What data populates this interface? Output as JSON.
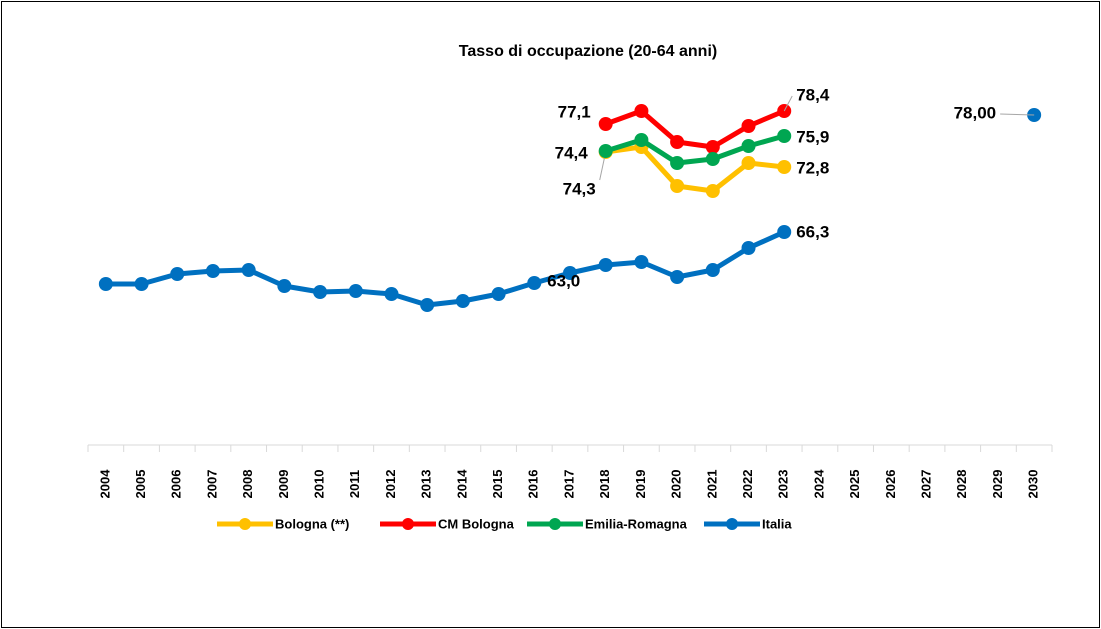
{
  "chart_data": {
    "type": "line",
    "title": "Tasso di occupazione (20-64 anni)",
    "categories": [
      "2004",
      "2005",
      "2006",
      "2007",
      "2008",
      "2009",
      "2010",
      "2011",
      "2012",
      "2013",
      "2014",
      "2015",
      "2016",
      "2017",
      "2018",
      "2019",
      "2020",
      "2021",
      "2022",
      "2023",
      "2024",
      "2025",
      "2026",
      "2027",
      "2028",
      "2029",
      "2030"
    ],
    "ylim": [
      45,
      80
    ],
    "legend": "bottom",
    "series": [
      {
        "name": "Bologna (**)",
        "color": "#FFC000",
        "values": [
          null,
          null,
          null,
          null,
          null,
          null,
          null,
          null,
          null,
          null,
          null,
          null,
          null,
          null,
          74.3,
          74.8,
          70.9,
          70.4,
          73.2,
          72.8,
          null,
          null,
          null,
          null,
          null,
          null,
          null
        ],
        "value_labels": [
          null,
          null,
          null,
          null,
          null,
          null,
          null,
          null,
          null,
          null,
          null,
          null,
          null,
          null,
          "74,3",
          null,
          null,
          null,
          null,
          "72,8",
          null,
          null,
          null,
          null,
          null,
          null,
          null
        ]
      },
      {
        "name": "CM Bologna",
        "color": "#FF0000",
        "values": [
          null,
          null,
          null,
          null,
          null,
          null,
          null,
          null,
          null,
          null,
          null,
          null,
          null,
          null,
          77.1,
          78.4,
          75.3,
          74.8,
          76.9,
          78.4,
          null,
          null,
          null,
          null,
          null,
          null,
          null
        ],
        "value_labels": [
          null,
          null,
          null,
          null,
          null,
          null,
          null,
          null,
          null,
          null,
          null,
          null,
          null,
          null,
          "77,1",
          null,
          null,
          null,
          null,
          "78,4",
          null,
          null,
          null,
          null,
          null,
          null,
          null
        ]
      },
      {
        "name": "Emilia-Romagna",
        "color": "#00A651",
        "values": [
          null,
          null,
          null,
          null,
          null,
          null,
          null,
          null,
          null,
          null,
          null,
          null,
          null,
          null,
          74.4,
          75.5,
          73.2,
          73.6,
          74.9,
          75.9,
          null,
          null,
          null,
          null,
          null,
          null,
          null
        ],
        "value_labels": [
          null,
          null,
          null,
          null,
          null,
          null,
          null,
          null,
          null,
          null,
          null,
          null,
          null,
          null,
          "74,4",
          null,
          null,
          null,
          null,
          "75,9",
          null,
          null,
          null,
          null,
          null,
          null,
          null
        ]
      },
      {
        "name": "Italia",
        "color": "#0070C0",
        "values": [
          61.1,
          61.1,
          62.1,
          62.4,
          62.5,
          60.9,
          60.3,
          60.4,
          60.1,
          59.0,
          59.4,
          60.1,
          61.2,
          62.2,
          63.0,
          63.3,
          61.8,
          62.5,
          64.7,
          66.3,
          null,
          null,
          null,
          null,
          null,
          null,
          78.0
        ],
        "value_labels": [
          null,
          null,
          null,
          null,
          null,
          null,
          null,
          null,
          null,
          null,
          null,
          null,
          null,
          null,
          "63,0",
          null,
          null,
          null,
          null,
          "66,3",
          null,
          null,
          null,
          null,
          null,
          null,
          "78,00"
        ]
      }
    ]
  }
}
